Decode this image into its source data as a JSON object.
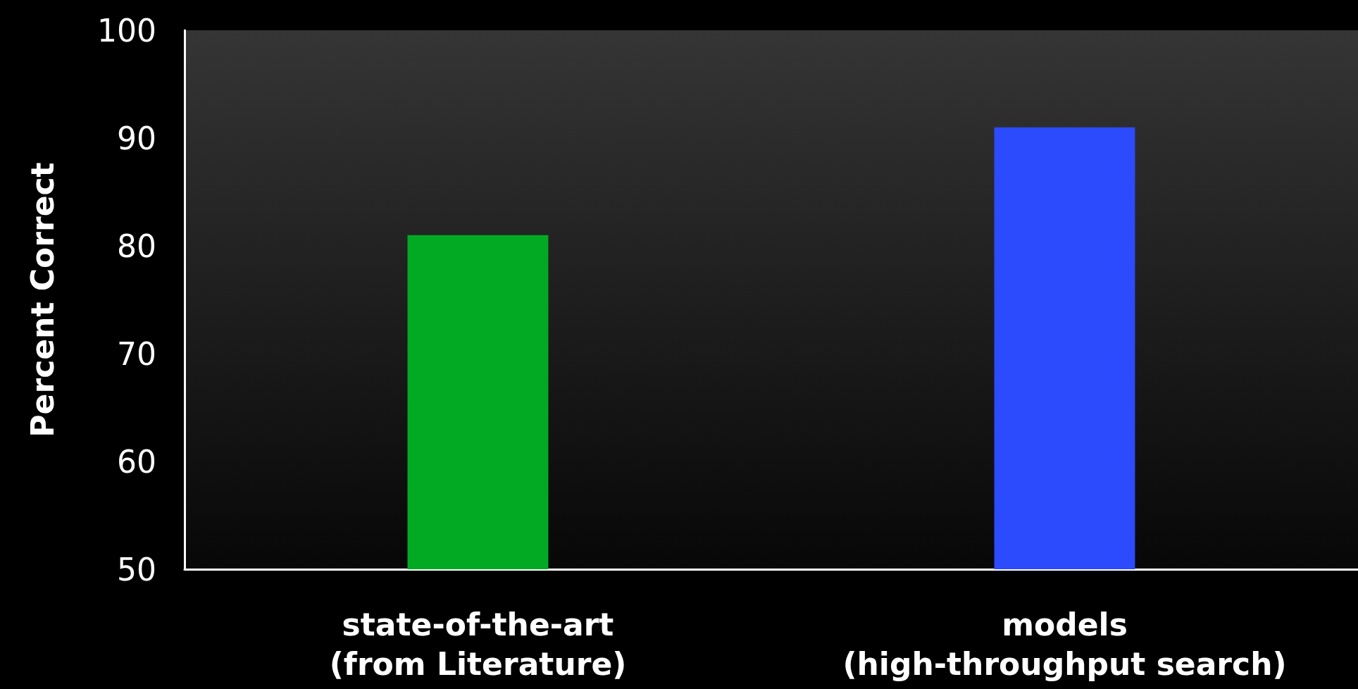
{
  "chart_data": {
    "type": "bar",
    "ylabel": "Percent Correct",
    "categories": [
      "state-of-the-art\n(from Literature)",
      "models\n(high-throughput search)"
    ],
    "values": [
      81,
      91
    ],
    "colors": [
      "#02aa24",
      "#2b4bfc"
    ],
    "ylim": [
      50,
      100
    ],
    "yticks": [
      50,
      60,
      70,
      80,
      90,
      100
    ],
    "grid": false
  }
}
